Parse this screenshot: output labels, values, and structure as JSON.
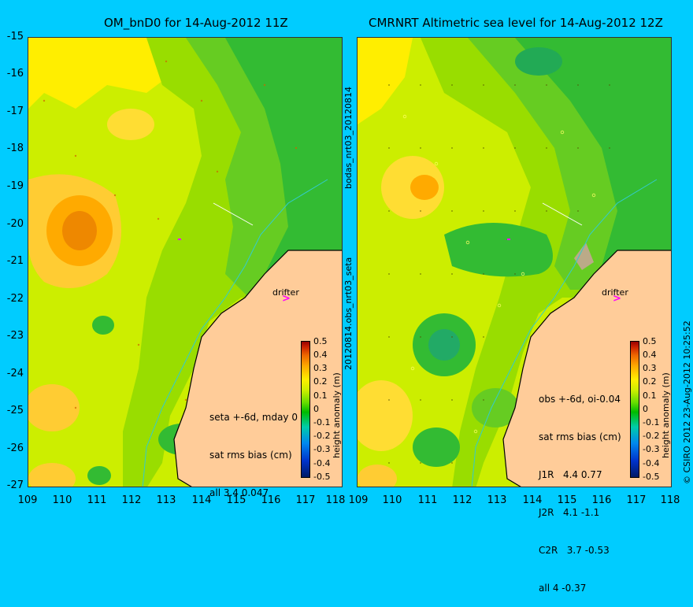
{
  "left_panel": {
    "title": "OM_bnD0 for 14-Aug-2012 11Z",
    "annotation_lines": [
      "seta +-6d, mday 0",
      "sat rms bias (cm)",
      "all 3.4 0.047"
    ],
    "side_label": "20120814.obs_nrt03_seta",
    "drifter_label": "drifter"
  },
  "right_panel": {
    "title": "CMRNRT Altimetric sea level  for 14-Aug-2012 12Z",
    "annotation_lines": [
      "obs +-6d, oi-0.04",
      "sat rms bias (cm)",
      "J1R   4.4 0.77",
      "J2R   4.1 -1.1",
      "C2R   3.7 -0.53",
      "all 4 -0.37"
    ],
    "side_label": "bodas_nrt03_20120814",
    "drifter_label": "drifter",
    "credit": "© CSIRO 2012   23-Aug-2012 10:25:52"
  },
  "axes": {
    "lat_ticks": [
      "-15",
      "-16",
      "-17",
      "-18",
      "-19",
      "-20",
      "-21",
      "-22",
      "-23",
      "-24",
      "-25",
      "-26",
      "-27"
    ],
    "lon_ticks": [
      "109",
      "110",
      "111",
      "112",
      "113",
      "114",
      "115",
      "116",
      "117",
      "118"
    ],
    "lon_range": [
      109,
      118
    ],
    "lat_range": [
      -27,
      -15
    ]
  },
  "colorbar": {
    "label": "height anomaly (m)",
    "ticks": [
      "0.5",
      "0.4",
      "0.3",
      "0.2",
      "0.1",
      "0",
      "-0.1",
      "-0.2",
      "-0.3",
      "-0.4",
      "-0.5"
    ]
  },
  "colors": {
    "background": "#00ccff",
    "land": "#ffcc99",
    "drifter": "#ff00ff"
  }
}
